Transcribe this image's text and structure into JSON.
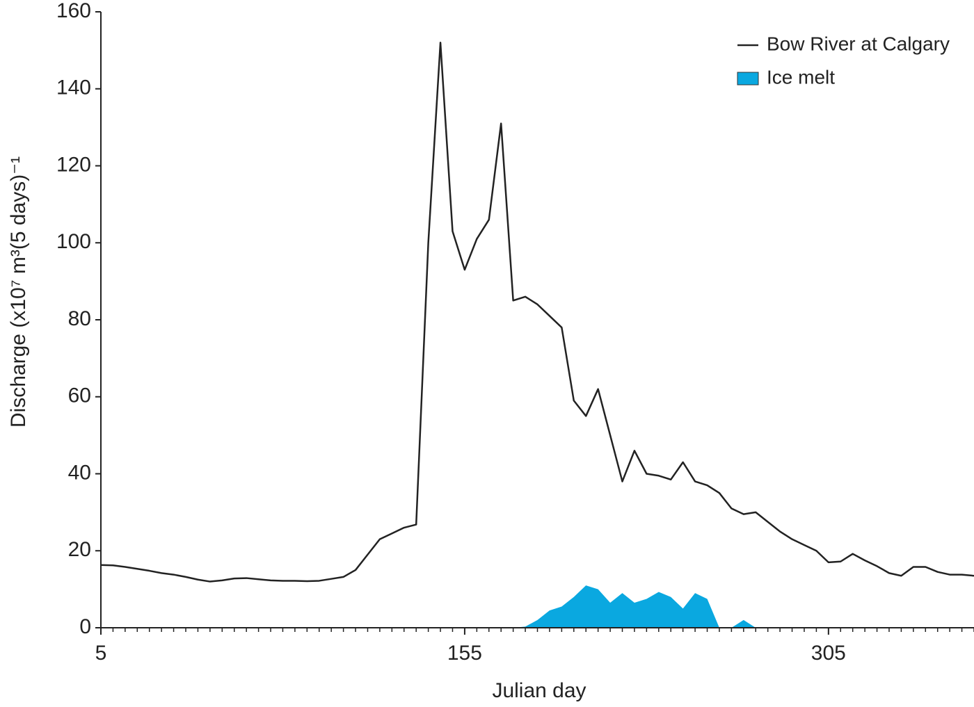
{
  "chart_data": {
    "type": "line",
    "x_label": "Julian day",
    "y_label": "Discharge (x10⁷ m³(5 days)⁻¹",
    "x": [
      5,
      10,
      15,
      20,
      25,
      30,
      35,
      40,
      45,
      50,
      55,
      60,
      65,
      70,
      75,
      80,
      85,
      90,
      95,
      100,
      105,
      110,
      115,
      120,
      125,
      130,
      135,
      140,
      145,
      150,
      155,
      160,
      165,
      170,
      175,
      180,
      185,
      190,
      195,
      200,
      205,
      210,
      215,
      220,
      225,
      230,
      235,
      240,
      245,
      250,
      255,
      260,
      265,
      270,
      275,
      280,
      285,
      290,
      295,
      300,
      305,
      310,
      315,
      320,
      325,
      330,
      335,
      340,
      345,
      350,
      355,
      360,
      365
    ],
    "series": [
      {
        "name": "Bow River at Calgary",
        "type": "line",
        "color": "#222222",
        "values": [
          16.3,
          16.2,
          15.8,
          15.3,
          14.8,
          14.2,
          13.8,
          13.2,
          12.5,
          12.0,
          12.3,
          12.8,
          12.9,
          12.6,
          12.3,
          12.2,
          12.2,
          12.1,
          12.2,
          12.7,
          13.2,
          15,
          19,
          23,
          24.5,
          26,
          26.8,
          100,
          152,
          103,
          93,
          101,
          106,
          131,
          85,
          86,
          84,
          81,
          78,
          59,
          55,
          62,
          50,
          38,
          46,
          40,
          39.5,
          38.5,
          43,
          38,
          37,
          35,
          31,
          29.5,
          30,
          27.5,
          25,
          23,
          21.5,
          20,
          17,
          17.2,
          19.2,
          17.5,
          16,
          14.2,
          13.5,
          15.8,
          15.8,
          14.5,
          13.8,
          13.8,
          13.5
        ]
      },
      {
        "name": "Ice melt",
        "type": "area",
        "color": "#0aa8e0",
        "values": [
          0,
          0,
          0,
          0,
          0,
          0,
          0,
          0,
          0,
          0,
          0,
          0,
          0,
          0,
          0,
          0,
          0,
          0,
          0,
          0,
          0,
          0,
          0,
          0,
          0,
          0,
          0,
          0,
          0,
          0,
          0,
          0,
          0,
          0,
          0,
          0.3,
          2,
          4.5,
          5.5,
          8,
          11,
          10,
          6.5,
          9,
          6.5,
          7.5,
          9.3,
          8,
          5,
          9,
          7.5,
          0,
          0,
          2,
          0,
          0,
          0,
          0,
          0,
          0,
          0,
          0,
          0,
          0,
          0,
          0,
          0,
          0,
          0,
          0,
          0,
          0,
          0
        ]
      }
    ],
    "xlim": [
      5,
      365
    ],
    "xticks": [
      5,
      155,
      305
    ],
    "ylim": [
      0,
      160
    ],
    "yticks": [
      0,
      20,
      40,
      60,
      80,
      100,
      120,
      140,
      160
    ],
    "grid": false,
    "legend": "top-right"
  }
}
